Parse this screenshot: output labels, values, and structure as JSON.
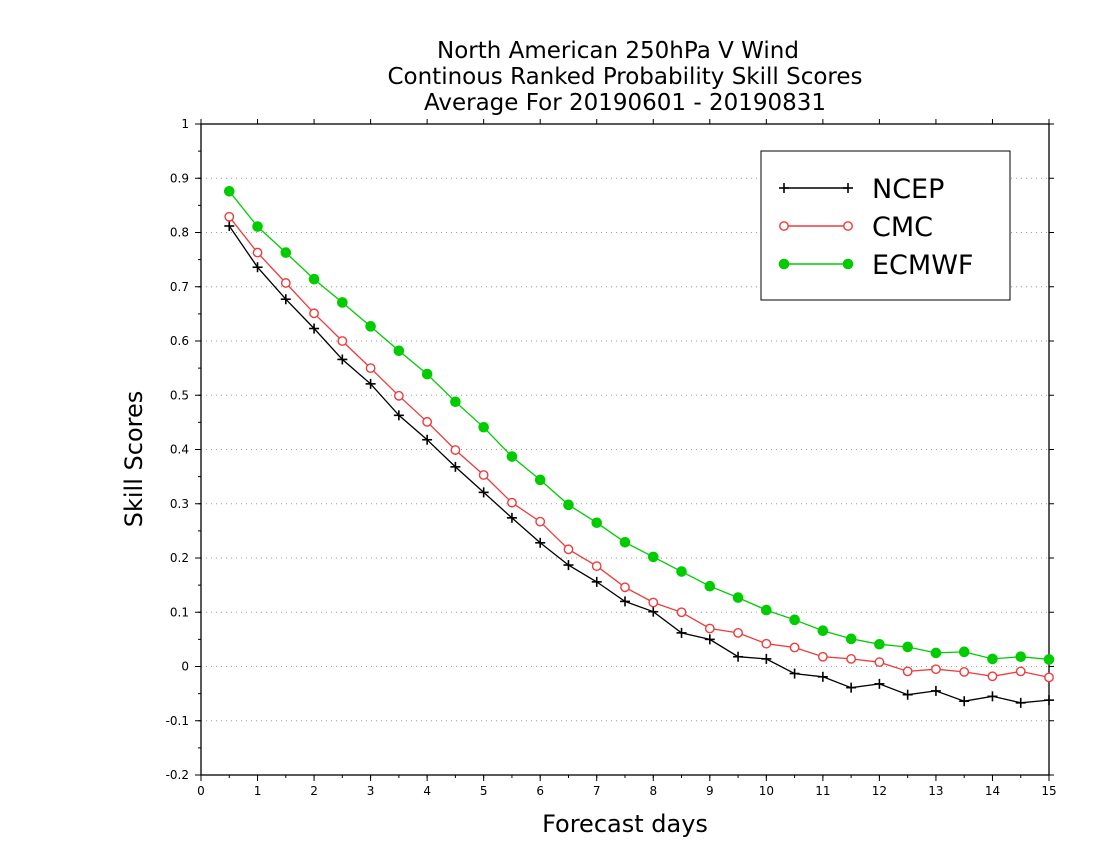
{
  "chart_data": {
    "type": "line",
    "title_lines": [
      "North American 250hPa V Wind",
      "Continous Ranked Probability Skill Scores",
      "Average For 20190601 - 20190831"
    ],
    "xlabel": "Forecast days",
    "ylabel": "Skill Scores",
    "xlim": [
      0,
      15
    ],
    "ylim": [
      -0.2,
      1
    ],
    "x_ticks": [
      0,
      1,
      2,
      3,
      4,
      5,
      6,
      7,
      8,
      9,
      10,
      11,
      12,
      13,
      14,
      15
    ],
    "x_tick_labels": [
      "0",
      "1",
      "2",
      "3",
      "4",
      "5",
      "6",
      "7",
      "8",
      "9",
      "10",
      "11",
      "12",
      "13",
      "14",
      "15"
    ],
    "y_ticks": [
      -0.2,
      -0.1,
      0,
      0.1,
      0.2,
      0.3,
      0.4,
      0.5,
      0.6,
      0.7,
      0.8,
      0.9,
      1
    ],
    "y_tick_labels": [
      "-0.2",
      "-0.1",
      "0",
      "0.1",
      "0.2",
      "0.3",
      "0.4",
      "0.5",
      "0.6",
      "0.7",
      "0.8",
      "0.9",
      "1"
    ],
    "grid": "horizontal dotted",
    "legend_position": "top-right",
    "x": [
      0.5,
      1,
      1.5,
      2,
      2.5,
      3,
      3.5,
      4,
      4.5,
      5,
      5.5,
      6,
      6.5,
      7,
      7.5,
      8,
      8.5,
      9,
      9.5,
      10,
      10.5,
      11,
      11.5,
      12,
      12.5,
      13,
      13.5,
      14,
      14.5,
      15
    ],
    "series": [
      {
        "name": "NCEP",
        "color": "#000000",
        "marker": "plus",
        "values": [
          0.812,
          0.736,
          0.677,
          0.623,
          0.566,
          0.521,
          0.463,
          0.418,
          0.368,
          0.321,
          0.274,
          0.228,
          0.187,
          0.156,
          0.12,
          0.101,
          0.062,
          0.05,
          0.018,
          0.014,
          -0.013,
          -0.019,
          -0.039,
          -0.032,
          -0.052,
          -0.045,
          -0.064,
          -0.055,
          -0.067,
          -0.062
        ]
      },
      {
        "name": "CMC",
        "color": "#ee3b3b",
        "marker": "open-circle",
        "values": [
          0.829,
          0.763,
          0.707,
          0.651,
          0.6,
          0.55,
          0.499,
          0.451,
          0.399,
          0.353,
          0.302,
          0.267,
          0.216,
          0.185,
          0.146,
          0.118,
          0.1,
          0.07,
          0.062,
          0.042,
          0.035,
          0.018,
          0.014,
          0.008,
          -0.009,
          -0.005,
          -0.01,
          -0.018,
          -0.009,
          -0.02
        ]
      },
      {
        "name": "ECMWF",
        "color": "#00cc00",
        "marker": "filled-circle",
        "values": [
          0.876,
          0.811,
          0.763,
          0.714,
          0.671,
          0.627,
          0.582,
          0.539,
          0.488,
          0.441,
          0.387,
          0.344,
          0.298,
          0.265,
          0.229,
          0.202,
          0.175,
          0.148,
          0.127,
          0.104,
          0.086,
          0.066,
          0.051,
          0.041,
          0.036,
          0.025,
          0.027,
          0.014,
          0.018,
          0.013
        ]
      }
    ]
  }
}
